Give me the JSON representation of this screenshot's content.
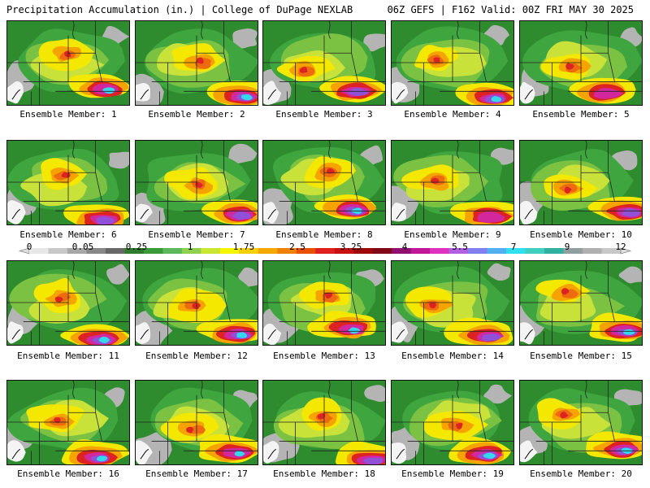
{
  "header": {
    "title": "Precipitation Accumulation (in.) | College of DuPage NEXLAB",
    "run_info": "06Z GEFS | F162 Valid: 00Z FRI MAY 30 2025"
  },
  "members": [
    {
      "label": "Ensemble Member: 1"
    },
    {
      "label": "Ensemble Member: 2"
    },
    {
      "label": "Ensemble Member: 3"
    },
    {
      "label": "Ensemble Member: 4"
    },
    {
      "label": "Ensemble Member: 5"
    },
    {
      "label": "Ensemble Member: 6"
    },
    {
      "label": "Ensemble Member: 7"
    },
    {
      "label": "Ensemble Member: 8"
    },
    {
      "label": "Ensemble Member: 9"
    },
    {
      "label": "Ensemble Member: 10"
    },
    {
      "label": "Ensemble Member: 11"
    },
    {
      "label": "Ensemble Member: 12"
    },
    {
      "label": "Ensemble Member: 13"
    },
    {
      "label": "Ensemble Member: 14"
    },
    {
      "label": "Ensemble Member: 15"
    },
    {
      "label": "Ensemble Member: 16"
    },
    {
      "label": "Ensemble Member: 17"
    },
    {
      "label": "Ensemble Member: 18"
    },
    {
      "label": "Ensemble Member: 19"
    },
    {
      "label": "Ensemble Member: 20"
    }
  ],
  "legend": {
    "labels": [
      "0",
      "0.05",
      "0.25",
      "1",
      "1.75",
      "2.5",
      "3.25",
      "4",
      "5.5",
      "7",
      "9",
      "12"
    ],
    "colors": [
      "#e8e8e8",
      "#c8c8c8",
      "#a8a8a8",
      "#888888",
      "#686868",
      "#2e7d2e",
      "#3a9a3a",
      "#5cb85c",
      "#8fd14f",
      "#c8e632",
      "#f5f500",
      "#f5d000",
      "#f5a800",
      "#f08000",
      "#e85000",
      "#e02020",
      "#c81010",
      "#a00808",
      "#800818",
      "#901070",
      "#c01898",
      "#e030c0",
      "#b060e0",
      "#8080f0",
      "#50b0f0",
      "#30e0f0",
      "#40d0c0",
      "#30b0a0",
      "#90a0a0",
      "#b0b0b0",
      "#c8c8c8"
    ]
  },
  "map": {
    "shade_colors": {
      "green_dark": "#2e8b2e",
      "green": "#3fa63f",
      "green_light": "#7cc242",
      "yellow_green": "#c9e23a",
      "yellow": "#f5e800",
      "orange": "#f5a300",
      "orange_red": "#ee6a10",
      "red": "#dd2222",
      "dark_red": "#a60d1e",
      "magenta": "#d3279e",
      "purple": "#9050d8",
      "cyan": "#33d8ee",
      "gray": "#b4b4b4",
      "white": "#f4f4f4"
    }
  }
}
